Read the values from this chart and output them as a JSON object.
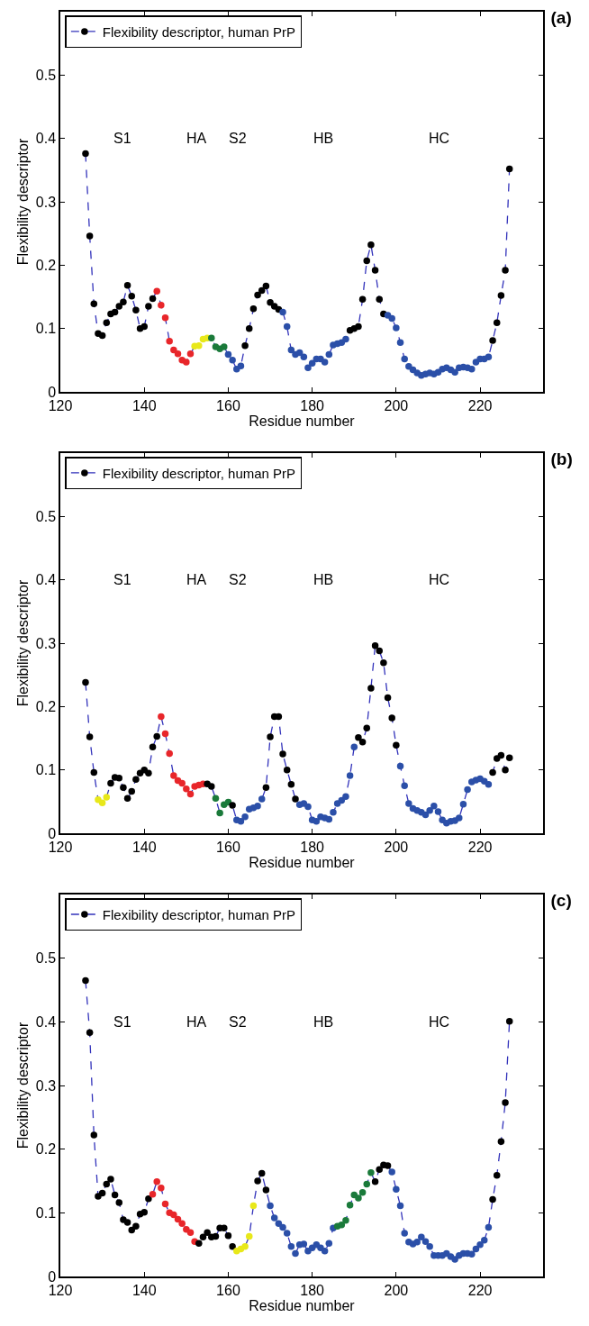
{
  "chart_data": [
    {
      "type": "line",
      "title": "(a)",
      "xlabel": "Residue number",
      "ylabel": "Flexibility descriptor",
      "xlim": [
        120,
        235
      ],
      "ylim": [
        0,
        0.6
      ],
      "xticks": [
        120,
        140,
        160,
        180,
        200,
        220
      ],
      "yticks": [
        0,
        0.1,
        0.2,
        0.3,
        0.4,
        0.5
      ],
      "grid": false,
      "legend": "top left",
      "marker": "circle",
      "line_style": "dashed",
      "annotations": [
        "S1",
        "HA",
        "S2",
        "HB",
        "HC"
      ],
      "x": [
        126,
        127,
        128,
        129,
        130,
        131,
        132,
        133,
        134,
        135,
        136,
        137,
        138,
        139,
        140,
        141,
        142,
        143,
        144,
        145,
        146,
        147,
        148,
        149,
        150,
        151,
        152,
        153,
        154,
        155,
        156,
        157,
        158,
        159,
        160,
        161,
        162,
        163,
        164,
        165,
        166,
        167,
        168,
        169,
        170,
        171,
        172,
        173,
        174,
        175,
        176,
        177,
        178,
        179,
        180,
        181,
        182,
        183,
        184,
        185,
        186,
        187,
        188,
        189,
        190,
        191,
        192,
        193,
        194,
        195,
        196,
        197,
        198,
        199,
        200,
        201,
        202,
        203,
        204,
        205,
        206,
        207,
        208,
        209,
        210,
        211,
        212,
        213,
        214,
        215,
        216,
        217,
        218,
        219,
        220,
        221,
        222,
        223,
        224,
        225,
        226,
        227
      ],
      "series": [
        {
          "name": "Flexibility descriptor, human PrP",
          "color": "#3333bb",
          "values": [
            0.376,
            0.246,
            0.139,
            0.092,
            0.089,
            0.109,
            0.123,
            0.126,
            0.135,
            0.142,
            0.168,
            0.151,
            0.129,
            0.1,
            0.103,
            0.135,
            0.147,
            0.159,
            0.137,
            0.117,
            0.08,
            0.066,
            0.06,
            0.05,
            0.047,
            0.06,
            0.072,
            0.073,
            0.083,
            0.085,
            0.085,
            0.071,
            0.068,
            0.071,
            0.059,
            0.05,
            0.036,
            0.041,
            0.073,
            0.1,
            0.131,
            0.153,
            0.16,
            0.167,
            0.141,
            0.135,
            0.13,
            0.126,
            0.103,
            0.066,
            0.059,
            0.062,
            0.055,
            0.038,
            0.045,
            0.052,
            0.052,
            0.047,
            0.059,
            0.074,
            0.076,
            0.078,
            0.083,
            0.097,
            0.1,
            0.103,
            0.146,
            0.207,
            0.232,
            0.192,
            0.146,
            0.123,
            0.121,
            0.116,
            0.101,
            0.078,
            0.052,
            0.04,
            0.035,
            0.03,
            0.026,
            0.028,
            0.03,
            0.028,
            0.031,
            0.036,
            0.038,
            0.035,
            0.031,
            0.038,
            0.039,
            0.038,
            0.036,
            0.047,
            0.052,
            0.052,
            0.055,
            0.081,
            0.109,
            0.152,
            0.192,
            0.352
          ],
          "colors": [
            "#000000",
            "#000000",
            "#000000",
            "#000000",
            "#000000",
            "#000000",
            "#000000",
            "#000000",
            "#000000",
            "#000000",
            "#000000",
            "#000000",
            "#000000",
            "#000000",
            "#000000",
            "#000000",
            "#000000",
            "#e8262a",
            "#e8262a",
            "#e8262a",
            "#e8262a",
            "#e8262a",
            "#e8262a",
            "#e8262a",
            "#e8262a",
            "#e8262a",
            "#e8e81a",
            "#e8e81a",
            "#e8e81a",
            "#e8e81a",
            "#1a7a3a",
            "#1a7a3a",
            "#1a7a3a",
            "#1a7a3a",
            "#2b4fa8",
            "#2b4fa8",
            "#2b4fa8",
            "#2b4fa8",
            "#000000",
            "#000000",
            "#000000",
            "#000000",
            "#000000",
            "#000000",
            "#000000",
            "#000000",
            "#000000",
            "#2b4fa8",
            "#2b4fa8",
            "#2b4fa8",
            "#2b4fa8",
            "#2b4fa8",
            "#2b4fa8",
            "#2b4fa8",
            "#2b4fa8",
            "#2b4fa8",
            "#2b4fa8",
            "#2b4fa8",
            "#2b4fa8",
            "#2b4fa8",
            "#2b4fa8",
            "#2b4fa8",
            "#2b4fa8",
            "#000000",
            "#000000",
            "#000000",
            "#000000",
            "#000000",
            "#000000",
            "#000000",
            "#000000",
            "#000000",
            "#2b4fa8",
            "#2b4fa8",
            "#2b4fa8",
            "#2b4fa8",
            "#2b4fa8",
            "#2b4fa8",
            "#2b4fa8",
            "#2b4fa8",
            "#2b4fa8",
            "#2b4fa8",
            "#2b4fa8",
            "#2b4fa8",
            "#2b4fa8",
            "#2b4fa8",
            "#2b4fa8",
            "#2b4fa8",
            "#2b4fa8",
            "#2b4fa8",
            "#2b4fa8",
            "#2b4fa8",
            "#2b4fa8",
            "#2b4fa8",
            "#2b4fa8",
            "#2b4fa8",
            "#2b4fa8",
            "#000000",
            "#000000",
            "#000000",
            "#000000",
            "#000000"
          ]
        }
      ]
    },
    {
      "type": "line",
      "title": "(b)",
      "xlabel": "Residue number",
      "ylabel": "Flexibility descriptor",
      "xlim": [
        120,
        235
      ],
      "ylim": [
        0,
        0.6
      ],
      "xticks": [
        120,
        140,
        160,
        180,
        200,
        220
      ],
      "yticks": [
        0,
        0.1,
        0.2,
        0.3,
        0.4,
        0.5
      ],
      "grid": false,
      "legend": "top left",
      "marker": "circle",
      "line_style": "dashed",
      "annotations": [
        "S1",
        "HA",
        "S2",
        "HB",
        "HC"
      ],
      "x": [
        126,
        127,
        128,
        129,
        130,
        131,
        132,
        133,
        134,
        135,
        136,
        137,
        138,
        139,
        140,
        141,
        142,
        143,
        144,
        145,
        146,
        147,
        148,
        149,
        150,
        151,
        152,
        153,
        154,
        155,
        156,
        157,
        158,
        159,
        160,
        161,
        162,
        163,
        164,
        165,
        166,
        167,
        168,
        169,
        170,
        171,
        172,
        173,
        174,
        175,
        176,
        177,
        178,
        179,
        180,
        181,
        182,
        183,
        184,
        185,
        186,
        187,
        188,
        189,
        190,
        191,
        192,
        193,
        194,
        195,
        196,
        197,
        198,
        199,
        200,
        201,
        202,
        203,
        204,
        205,
        206,
        207,
        208,
        209,
        210,
        211,
        212,
        213,
        214,
        215,
        216,
        217,
        218,
        219,
        220,
        221,
        222,
        223,
        224,
        225,
        226,
        227
      ],
      "series": [
        {
          "name": "Flexibility descriptor, human PrP",
          "color": "#3333bb",
          "values": [
            0.238,
            0.152,
            0.096,
            0.053,
            0.048,
            0.057,
            0.079,
            0.088,
            0.087,
            0.072,
            0.055,
            0.066,
            0.085,
            0.095,
            0.1,
            0.095,
            0.136,
            0.153,
            0.184,
            0.157,
            0.126,
            0.091,
            0.083,
            0.079,
            0.07,
            0.062,
            0.074,
            0.076,
            0.078,
            0.078,
            0.074,
            0.055,
            0.032,
            0.045,
            0.049,
            0.044,
            0.021,
            0.019,
            0.026,
            0.038,
            0.04,
            0.043,
            0.054,
            0.072,
            0.152,
            0.184,
            0.184,
            0.125,
            0.1,
            0.077,
            0.054,
            0.045,
            0.047,
            0.042,
            0.021,
            0.019,
            0.026,
            0.024,
            0.022,
            0.033,
            0.047,
            0.052,
            0.058,
            0.091,
            0.136,
            0.151,
            0.144,
            0.166,
            0.229,
            0.296,
            0.288,
            0.269,
            0.214,
            0.182,
            0.139,
            0.106,
            0.075,
            0.047,
            0.039,
            0.036,
            0.033,
            0.029,
            0.036,
            0.043,
            0.034,
            0.021,
            0.016,
            0.019,
            0.02,
            0.024,
            0.046,
            0.069,
            0.081,
            0.084,
            0.086,
            0.082,
            0.077,
            0.096,
            0.118,
            0.123,
            0.1,
            0.119
          ],
          "colors": [
            "#000000",
            "#000000",
            "#000000",
            "#e8e81a",
            "#e8e81a",
            "#e8e81a",
            "#000000",
            "#000000",
            "#000000",
            "#000000",
            "#000000",
            "#000000",
            "#000000",
            "#000000",
            "#000000",
            "#000000",
            "#000000",
            "#000000",
            "#e8262a",
            "#e8262a",
            "#e8262a",
            "#e8262a",
            "#e8262a",
            "#e8262a",
            "#e8262a",
            "#e8262a",
            "#e8262a",
            "#e8262a",
            "#e8262a",
            "#000000",
            "#000000",
            "#1a7a3a",
            "#1a7a3a",
            "#1a7a3a",
            "#1a7a3a",
            "#000000",
            "#2b4fa8",
            "#2b4fa8",
            "#2b4fa8",
            "#2b4fa8",
            "#2b4fa8",
            "#2b4fa8",
            "#2b4fa8",
            "#000000",
            "#000000",
            "#000000",
            "#000000",
            "#000000",
            "#000000",
            "#000000",
            "#000000",
            "#2b4fa8",
            "#2b4fa8",
            "#2b4fa8",
            "#2b4fa8",
            "#2b4fa8",
            "#2b4fa8",
            "#2b4fa8",
            "#2b4fa8",
            "#2b4fa8",
            "#2b4fa8",
            "#2b4fa8",
            "#2b4fa8",
            "#2b4fa8",
            "#2b4fa8",
            "#000000",
            "#000000",
            "#000000",
            "#000000",
            "#000000",
            "#000000",
            "#000000",
            "#000000",
            "#000000",
            "#000000",
            "#2b4fa8",
            "#2b4fa8",
            "#2b4fa8",
            "#2b4fa8",
            "#2b4fa8",
            "#2b4fa8",
            "#2b4fa8",
            "#2b4fa8",
            "#2b4fa8",
            "#2b4fa8",
            "#2b4fa8",
            "#2b4fa8",
            "#2b4fa8",
            "#2b4fa8",
            "#2b4fa8",
            "#2b4fa8",
            "#2b4fa8",
            "#2b4fa8",
            "#2b4fa8",
            "#2b4fa8",
            "#2b4fa8",
            "#2b4fa8",
            "#000000",
            "#000000",
            "#000000",
            "#000000",
            "#000000"
          ]
        }
      ]
    },
    {
      "type": "line",
      "title": "(c)",
      "xlabel": "Residue number",
      "ylabel": "Flexibility descriptor",
      "xlim": [
        120,
        235
      ],
      "ylim": [
        0,
        0.6
      ],
      "xticks": [
        120,
        140,
        160,
        180,
        200,
        220
      ],
      "yticks": [
        0,
        0.1,
        0.2,
        0.3,
        0.4,
        0.5
      ],
      "grid": false,
      "legend": "top left",
      "marker": "circle",
      "line_style": "dashed",
      "annotations": [
        "S1",
        "HA",
        "S2",
        "HB",
        "HC"
      ],
      "x": [
        126,
        127,
        128,
        129,
        130,
        131,
        132,
        133,
        134,
        135,
        136,
        137,
        138,
        139,
        140,
        141,
        142,
        143,
        144,
        145,
        146,
        147,
        148,
        149,
        150,
        151,
        152,
        153,
        154,
        155,
        156,
        157,
        158,
        159,
        160,
        161,
        162,
        163,
        164,
        165,
        166,
        167,
        168,
        169,
        170,
        171,
        172,
        173,
        174,
        175,
        176,
        177,
        178,
        179,
        180,
        181,
        182,
        183,
        184,
        185,
        186,
        187,
        188,
        189,
        190,
        191,
        192,
        193,
        194,
        195,
        196,
        197,
        198,
        199,
        200,
        201,
        202,
        203,
        204,
        205,
        206,
        207,
        208,
        209,
        210,
        211,
        212,
        213,
        214,
        215,
        216,
        217,
        218,
        219,
        220,
        221,
        222,
        223,
        224,
        225,
        226,
        227
      ],
      "series": [
        {
          "name": "Flexibility descriptor, human PrP",
          "color": "#3333bb",
          "values": [
            0.465,
            0.383,
            0.222,
            0.126,
            0.131,
            0.145,
            0.153,
            0.128,
            0.116,
            0.089,
            0.085,
            0.073,
            0.079,
            0.098,
            0.101,
            0.122,
            0.129,
            0.149,
            0.139,
            0.114,
            0.1,
            0.097,
            0.09,
            0.083,
            0.074,
            0.069,
            0.055,
            0.052,
            0.062,
            0.069,
            0.062,
            0.063,
            0.076,
            0.076,
            0.064,
            0.047,
            0.04,
            0.043,
            0.047,
            0.063,
            0.111,
            0.15,
            0.162,
            0.136,
            0.111,
            0.092,
            0.083,
            0.077,
            0.068,
            0.047,
            0.036,
            0.05,
            0.051,
            0.04,
            0.045,
            0.05,
            0.045,
            0.04,
            0.052,
            0.076,
            0.079,
            0.081,
            0.088,
            0.112,
            0.128,
            0.123,
            0.132,
            0.145,
            0.163,
            0.149,
            0.168,
            0.175,
            0.174,
            0.164,
            0.137,
            0.111,
            0.068,
            0.054,
            0.051,
            0.054,
            0.062,
            0.055,
            0.047,
            0.033,
            0.033,
            0.033,
            0.036,
            0.031,
            0.027,
            0.033,
            0.036,
            0.036,
            0.035,
            0.043,
            0.05,
            0.057,
            0.077,
            0.121,
            0.159,
            0.212,
            0.273,
            0.401
          ],
          "colors": [
            "#000000",
            "#000000",
            "#000000",
            "#000000",
            "#000000",
            "#000000",
            "#000000",
            "#000000",
            "#000000",
            "#000000",
            "#000000",
            "#000000",
            "#000000",
            "#000000",
            "#000000",
            "#000000",
            "#e8262a",
            "#e8262a",
            "#e8262a",
            "#e8262a",
            "#e8262a",
            "#e8262a",
            "#e8262a",
            "#e8262a",
            "#e8262a",
            "#e8262a",
            "#e8262a",
            "#000000",
            "#000000",
            "#000000",
            "#000000",
            "#000000",
            "#000000",
            "#000000",
            "#000000",
            "#000000",
            "#e8e81a",
            "#e8e81a",
            "#e8e81a",
            "#e8e81a",
            "#e8e81a",
            "#000000",
            "#000000",
            "#000000",
            "#2b4fa8",
            "#2b4fa8",
            "#2b4fa8",
            "#2b4fa8",
            "#2b4fa8",
            "#2b4fa8",
            "#2b4fa8",
            "#2b4fa8",
            "#2b4fa8",
            "#2b4fa8",
            "#2b4fa8",
            "#2b4fa8",
            "#2b4fa8",
            "#2b4fa8",
            "#2b4fa8",
            "#2b4fa8",
            "#1a7a3a",
            "#1a7a3a",
            "#1a7a3a",
            "#1a7a3a",
            "#1a7a3a",
            "#1a7a3a",
            "#1a7a3a",
            "#1a7a3a",
            "#1a7a3a",
            "#000000",
            "#000000",
            "#000000",
            "#000000",
            "#2b4fa8",
            "#2b4fa8",
            "#2b4fa8",
            "#2b4fa8",
            "#2b4fa8",
            "#2b4fa8",
            "#2b4fa8",
            "#2b4fa8",
            "#2b4fa8",
            "#2b4fa8",
            "#2b4fa8",
            "#2b4fa8",
            "#2b4fa8",
            "#2b4fa8",
            "#2b4fa8",
            "#2b4fa8",
            "#2b4fa8",
            "#2b4fa8",
            "#2b4fa8",
            "#2b4fa8",
            "#2b4fa8",
            "#2b4fa8",
            "#2b4fa8",
            "#2b4fa8",
            "#000000",
            "#000000",
            "#000000",
            "#000000",
            "#000000"
          ]
        }
      ]
    }
  ]
}
